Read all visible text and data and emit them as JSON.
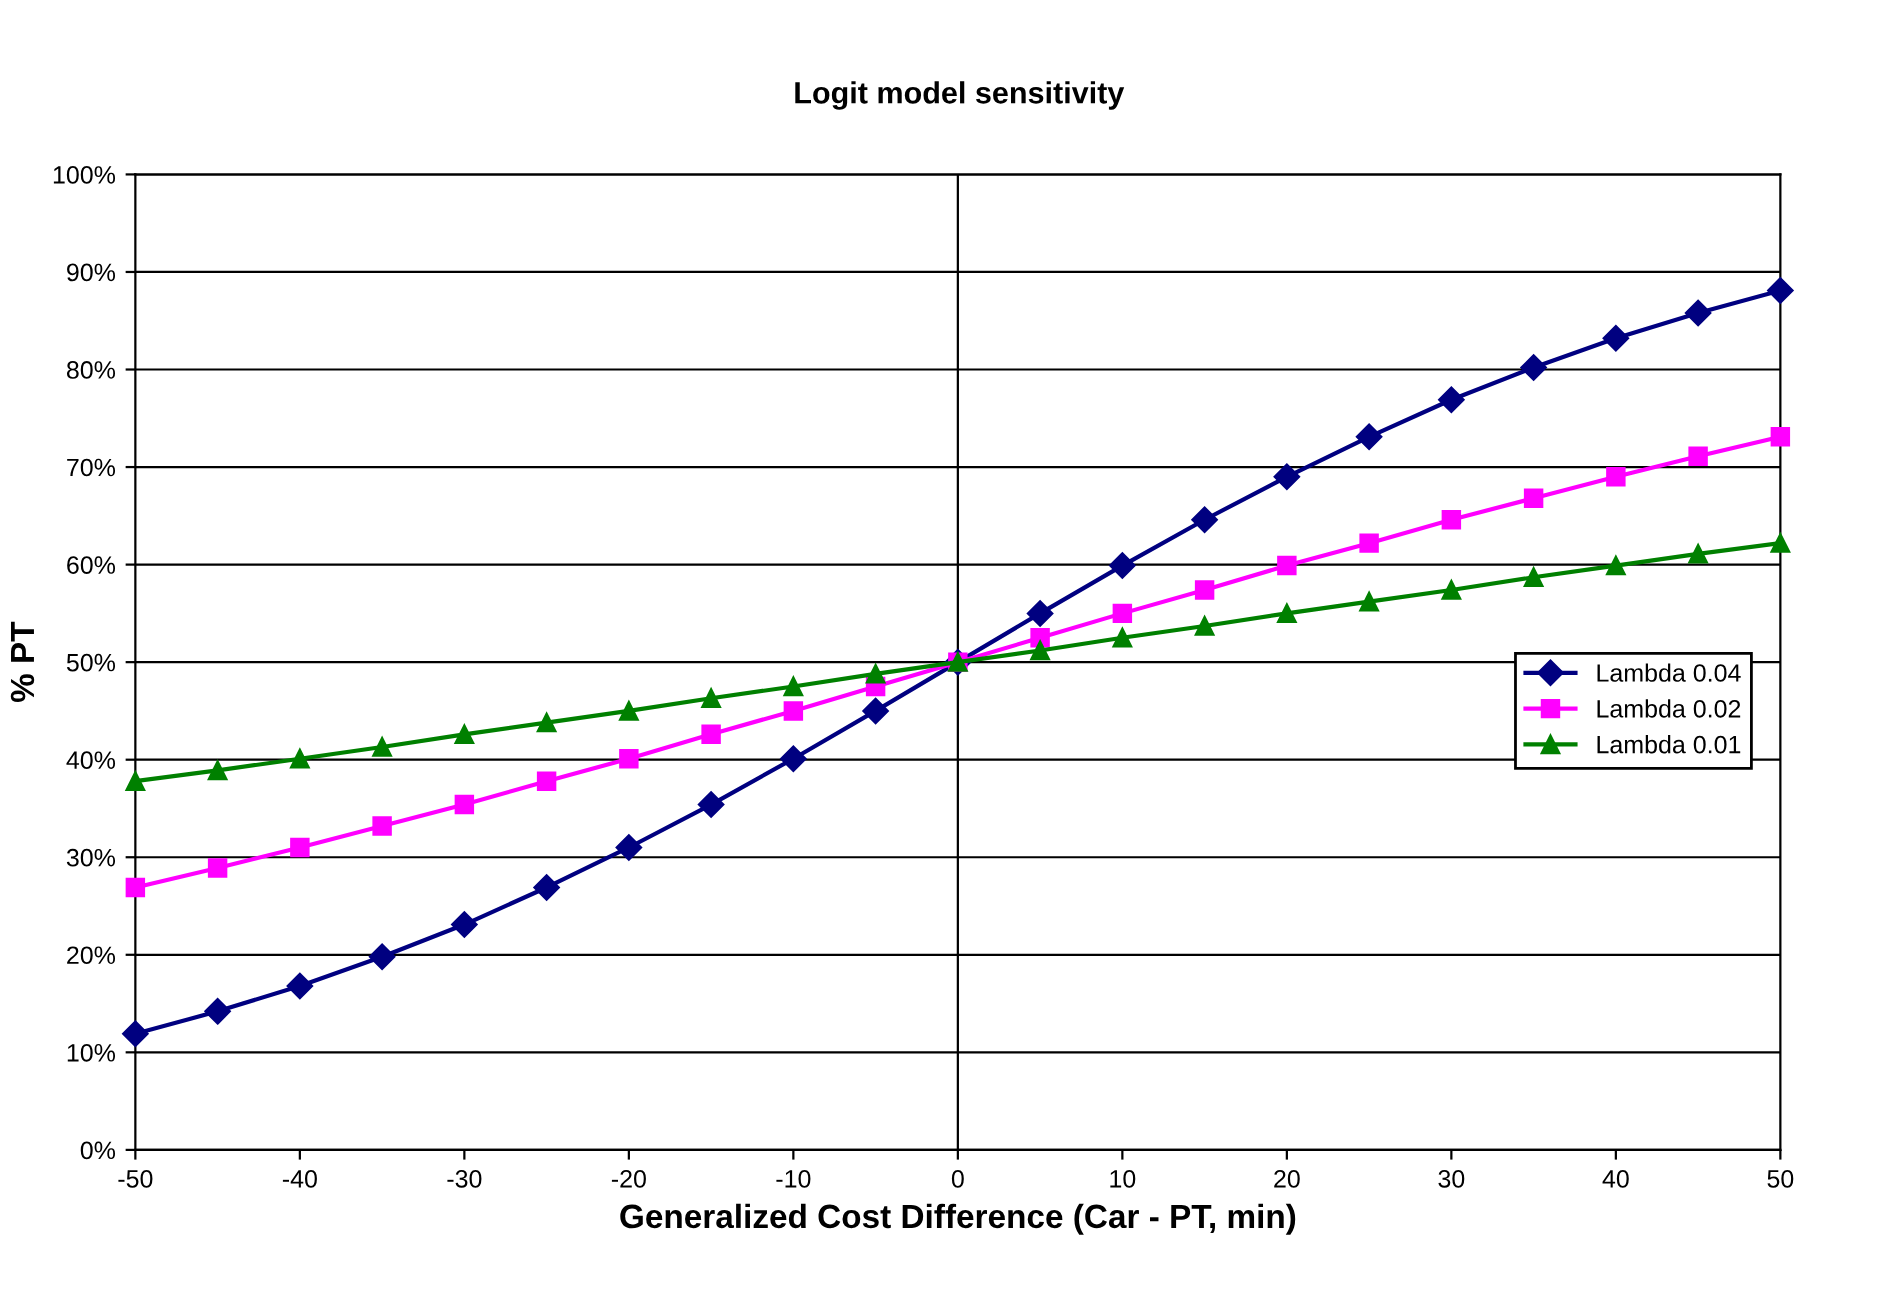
{
  "chart_data": {
    "type": "line",
    "title": "Logit model sensitivity",
    "xlabel": "Generalized Cost Difference (Car - PT, min)",
    "ylabel": "% PT",
    "x": [
      -50,
      -45,
      -40,
      -35,
      -30,
      -25,
      -20,
      -15,
      -10,
      -5,
      0,
      5,
      10,
      15,
      20,
      25,
      30,
      35,
      40,
      45,
      50
    ],
    "series": [
      {
        "name": "Lambda 0.04",
        "color": "#000080",
        "marker": "diamond",
        "values": [
          11.9,
          14.2,
          16.8,
          19.8,
          23.1,
          26.9,
          31.0,
          35.4,
          40.1,
          45.0,
          50.0,
          55.0,
          59.9,
          64.6,
          69.0,
          73.1,
          76.9,
          80.2,
          83.2,
          85.8,
          88.1
        ]
      },
      {
        "name": "Lambda 0.02",
        "color": "#ff00ff",
        "marker": "square",
        "values": [
          26.9,
          28.9,
          31.0,
          33.2,
          35.4,
          37.8,
          40.1,
          42.6,
          45.0,
          47.5,
          50.0,
          52.5,
          55.0,
          57.4,
          59.9,
          62.2,
          64.6,
          66.8,
          69.0,
          71.1,
          73.1
        ]
      },
      {
        "name": "Lambda 0.01",
        "color": "#008000",
        "marker": "triangle",
        "values": [
          37.8,
          38.9,
          40.1,
          41.3,
          42.6,
          43.8,
          45.0,
          46.3,
          47.5,
          48.8,
          50.0,
          51.2,
          52.5,
          53.7,
          55.0,
          56.2,
          57.4,
          58.7,
          59.9,
          61.1,
          62.2
        ]
      }
    ],
    "xlim": [
      -50,
      50
    ],
    "xticks": [
      -50,
      -40,
      -30,
      -20,
      -10,
      0,
      10,
      20,
      30,
      40,
      50
    ],
    "ylim": [
      0,
      100
    ],
    "yticks": [
      {
        "value": 0,
        "label": "0%"
      },
      {
        "value": 10,
        "label": "10%"
      },
      {
        "value": 20,
        "label": "20%"
      },
      {
        "value": 30,
        "label": "30%"
      },
      {
        "value": 40,
        "label": "40%"
      },
      {
        "value": 50,
        "label": "50%"
      },
      {
        "value": 60,
        "label": "60%"
      },
      {
        "value": 70,
        "label": "70%"
      },
      {
        "value": 80,
        "label": "80%"
      },
      {
        "value": 90,
        "label": "90%"
      },
      {
        "value": 100,
        "label": "100%"
      }
    ],
    "grid": "y",
    "ref_lines": [
      {
        "axis": "x",
        "value": 0,
        "color": "#000000"
      }
    ],
    "legend": "right",
    "line_style": "solid"
  }
}
